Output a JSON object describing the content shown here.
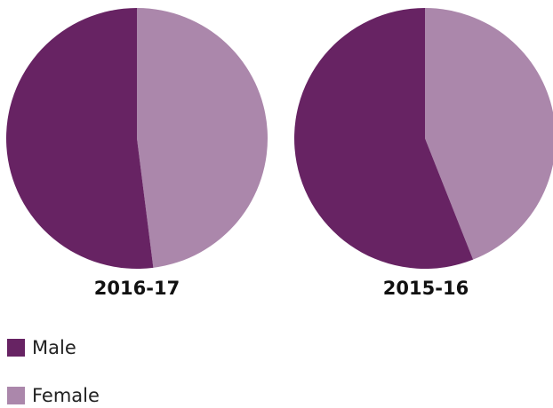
{
  "chart_data": {
    "type": "pie",
    "series": [
      "Male",
      "Female"
    ],
    "colors": {
      "Male": "#672363",
      "Female": "#AB87AB"
    },
    "pies": [
      {
        "title": "2016-17",
        "values": [
          52,
          48
        ]
      },
      {
        "title": "2015-16",
        "values": [
          56,
          44
        ]
      }
    ],
    "legend": {
      "position": "bottom-left",
      "items": [
        {
          "label": "Male",
          "color": "#672363"
        },
        {
          "label": "Female",
          "color": "#AB87AB"
        }
      ]
    }
  }
}
